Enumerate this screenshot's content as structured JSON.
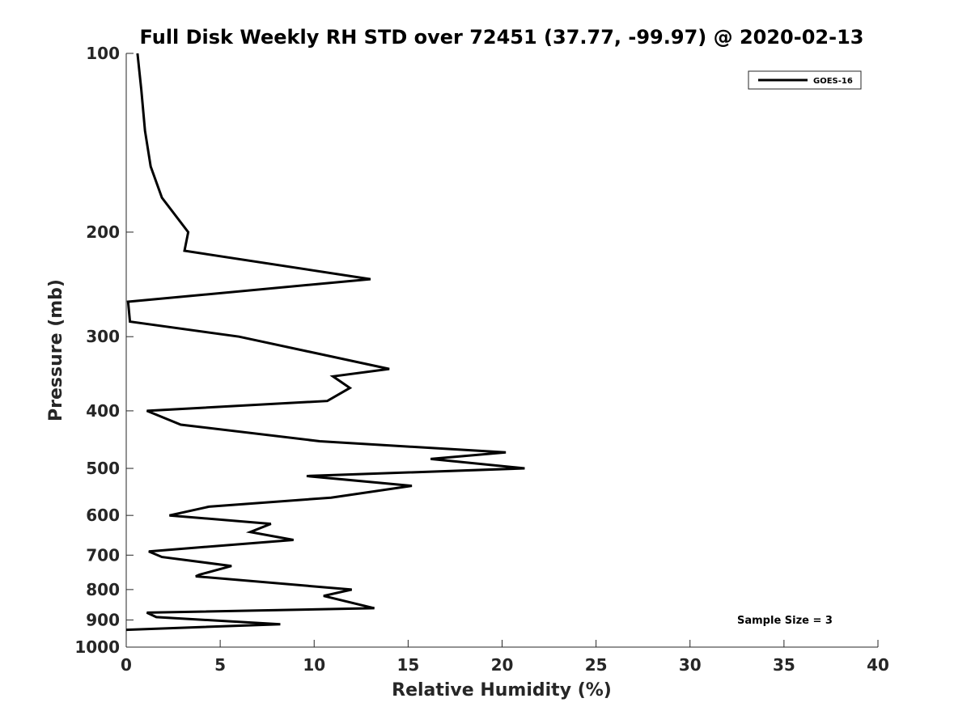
{
  "chart_data": {
    "type": "line",
    "title": "Full Disk Weekly RH STD over 72451 (37.77, -99.97) @ 2020-02-13",
    "xlabel": "Relative Humidity (%)",
    "ylabel": "Pressure (mb)",
    "xlim": [
      0,
      40
    ],
    "ylim": [
      100,
      1000
    ],
    "yscale": "log",
    "xticks": [
      0,
      5,
      10,
      15,
      20,
      25,
      30,
      35,
      40
    ],
    "yticks": [
      100,
      200,
      300,
      400,
      500,
      600,
      700,
      800,
      900,
      1000
    ],
    "grid": false,
    "legend_position": "top-right",
    "annotation": "Sample Size = 3",
    "series": [
      {
        "name": "GOES-16",
        "color": "#000000",
        "points": [
          [
            0.6,
            100
          ],
          [
            0.8,
            115
          ],
          [
            1.0,
            135
          ],
          [
            1.3,
            155
          ],
          [
            1.9,
            175
          ],
          [
            3.3,
            200
          ],
          [
            3.1,
            215
          ],
          [
            13.0,
            240
          ],
          [
            0.1,
            262
          ],
          [
            0.2,
            283
          ],
          [
            6.0,
            300
          ],
          [
            14.0,
            340
          ],
          [
            11.0,
            350
          ],
          [
            11.9,
            366
          ],
          [
            10.7,
            385
          ],
          [
            1.1,
            400
          ],
          [
            2.9,
            422
          ],
          [
            10.3,
            450
          ],
          [
            20.2,
            470
          ],
          [
            16.2,
            482
          ],
          [
            21.2,
            500
          ],
          [
            9.6,
            515
          ],
          [
            15.2,
            535
          ],
          [
            10.9,
            560
          ],
          [
            4.4,
            580
          ],
          [
            2.3,
            600
          ],
          [
            7.7,
            620
          ],
          [
            6.6,
            640
          ],
          [
            8.9,
            660
          ],
          [
            1.2,
            690
          ],
          [
            1.9,
            705
          ],
          [
            5.6,
            730
          ],
          [
            3.9,
            755
          ],
          [
            3.7,
            760
          ],
          [
            12.0,
            800
          ],
          [
            10.5,
            820
          ],
          [
            13.2,
            860
          ],
          [
            1.1,
            875
          ],
          [
            1.6,
            890
          ],
          [
            8.2,
            915
          ],
          [
            0.0,
            935
          ]
        ]
      }
    ]
  }
}
